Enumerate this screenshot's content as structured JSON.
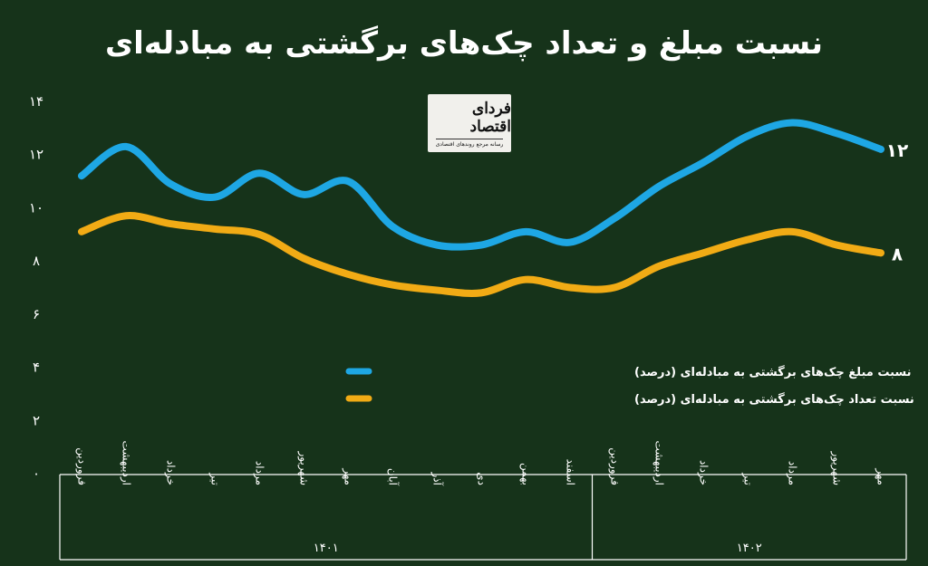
{
  "chart_data": {
    "type": "line",
    "title": "نسبت مبلغ و تعداد چک‌های برگشتی به مبادله‌ای",
    "categories": [
      "فروردین",
      "اردیبهشت",
      "خرداد",
      "تیر",
      "مرداد",
      "شهریور",
      "مهر",
      "آبان",
      "آذر",
      "دی",
      "بهمن",
      "اسفند",
      "فروردین",
      "اردیبهشت",
      "خرداد",
      "تیر",
      "مرداد",
      "شهریور",
      "مهر"
    ],
    "year_groups": [
      {
        "label": "۱۴۰۱",
        "from": 0,
        "to": 11
      },
      {
        "label": "۱۴۰۲",
        "from": 12,
        "to": 18
      }
    ],
    "yticks": [
      "۰",
      "۲",
      "۴",
      "۶",
      "۸",
      "۱۰",
      "۱۲",
      "۱۴"
    ],
    "ylim": [
      0,
      14
    ],
    "grid": false,
    "legend_position": "center",
    "series": [
      {
        "name": "نسبت مبلغ چک‌های برگشتی به مبادله‌ای (درصد)",
        "color": "#1ea7e4",
        "values": [
          11.2,
          12.3,
          10.9,
          10.4,
          11.3,
          10.5,
          11.0,
          9.3,
          8.6,
          8.6,
          9.1,
          8.7,
          9.6,
          10.8,
          11.7,
          12.7,
          13.2,
          12.8,
          12.2
        ],
        "end_label": "۱۲"
      },
      {
        "name": "نسبت تعداد چک‌های برگشتی به مبادله‌ای (درصد)",
        "color": "#f1ab15",
        "values": [
          9.1,
          9.7,
          9.4,
          9.2,
          9.0,
          8.1,
          7.5,
          7.1,
          6.9,
          6.8,
          7.3,
          7.0,
          7.0,
          7.8,
          8.3,
          8.8,
          9.1,
          8.6,
          8.3
        ],
        "end_label": "۸"
      }
    ]
  },
  "logo": {
    "text": "فردای اقتصاد",
    "subtext": "رسانه مرجع روندهای اقتصادی"
  }
}
